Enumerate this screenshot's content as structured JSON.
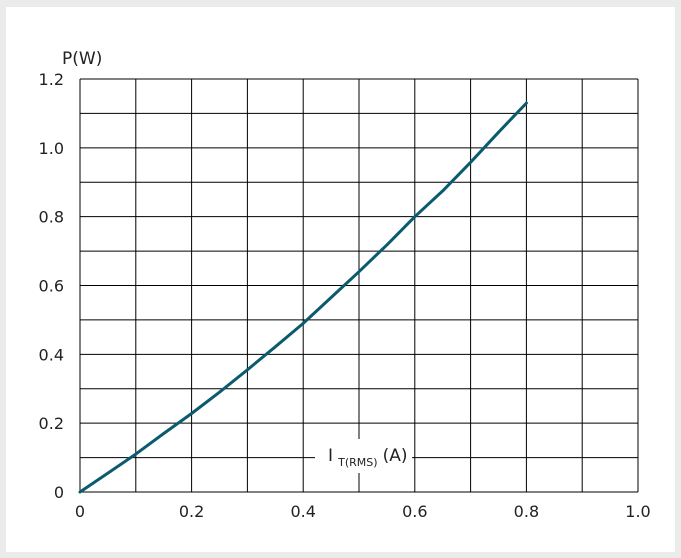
{
  "chart_data": {
    "type": "line",
    "title": "",
    "ylabel": "P(W)",
    "xlabel": {
      "main": "I",
      "subscript": "T(RMS)",
      "unit": "(A)"
    },
    "xlim": [
      0,
      1.0
    ],
    "ylim": [
      0,
      1.2
    ],
    "x_ticks": [
      "0",
      "0.2",
      "0.4",
      "0.6",
      "0.8",
      "1.0"
    ],
    "y_ticks": [
      "0",
      "0.2",
      "0.4",
      "0.6",
      "0.8",
      "1.0",
      "1.2"
    ],
    "grid": true,
    "line_color": "#0c5a6e",
    "series": [
      {
        "x": [
          0,
          0.05,
          0.1,
          0.15,
          0.2,
          0.25,
          0.3,
          0.35,
          0.4,
          0.45,
          0.5,
          0.55,
          0.6,
          0.65,
          0.7,
          0.75,
          0.8
        ],
        "values": [
          0,
          0.055,
          0.11,
          0.17,
          0.228,
          0.29,
          0.355,
          0.422,
          0.49,
          0.565,
          0.64,
          0.718,
          0.8,
          0.875,
          0.958,
          1.045,
          1.13
        ]
      }
    ]
  }
}
